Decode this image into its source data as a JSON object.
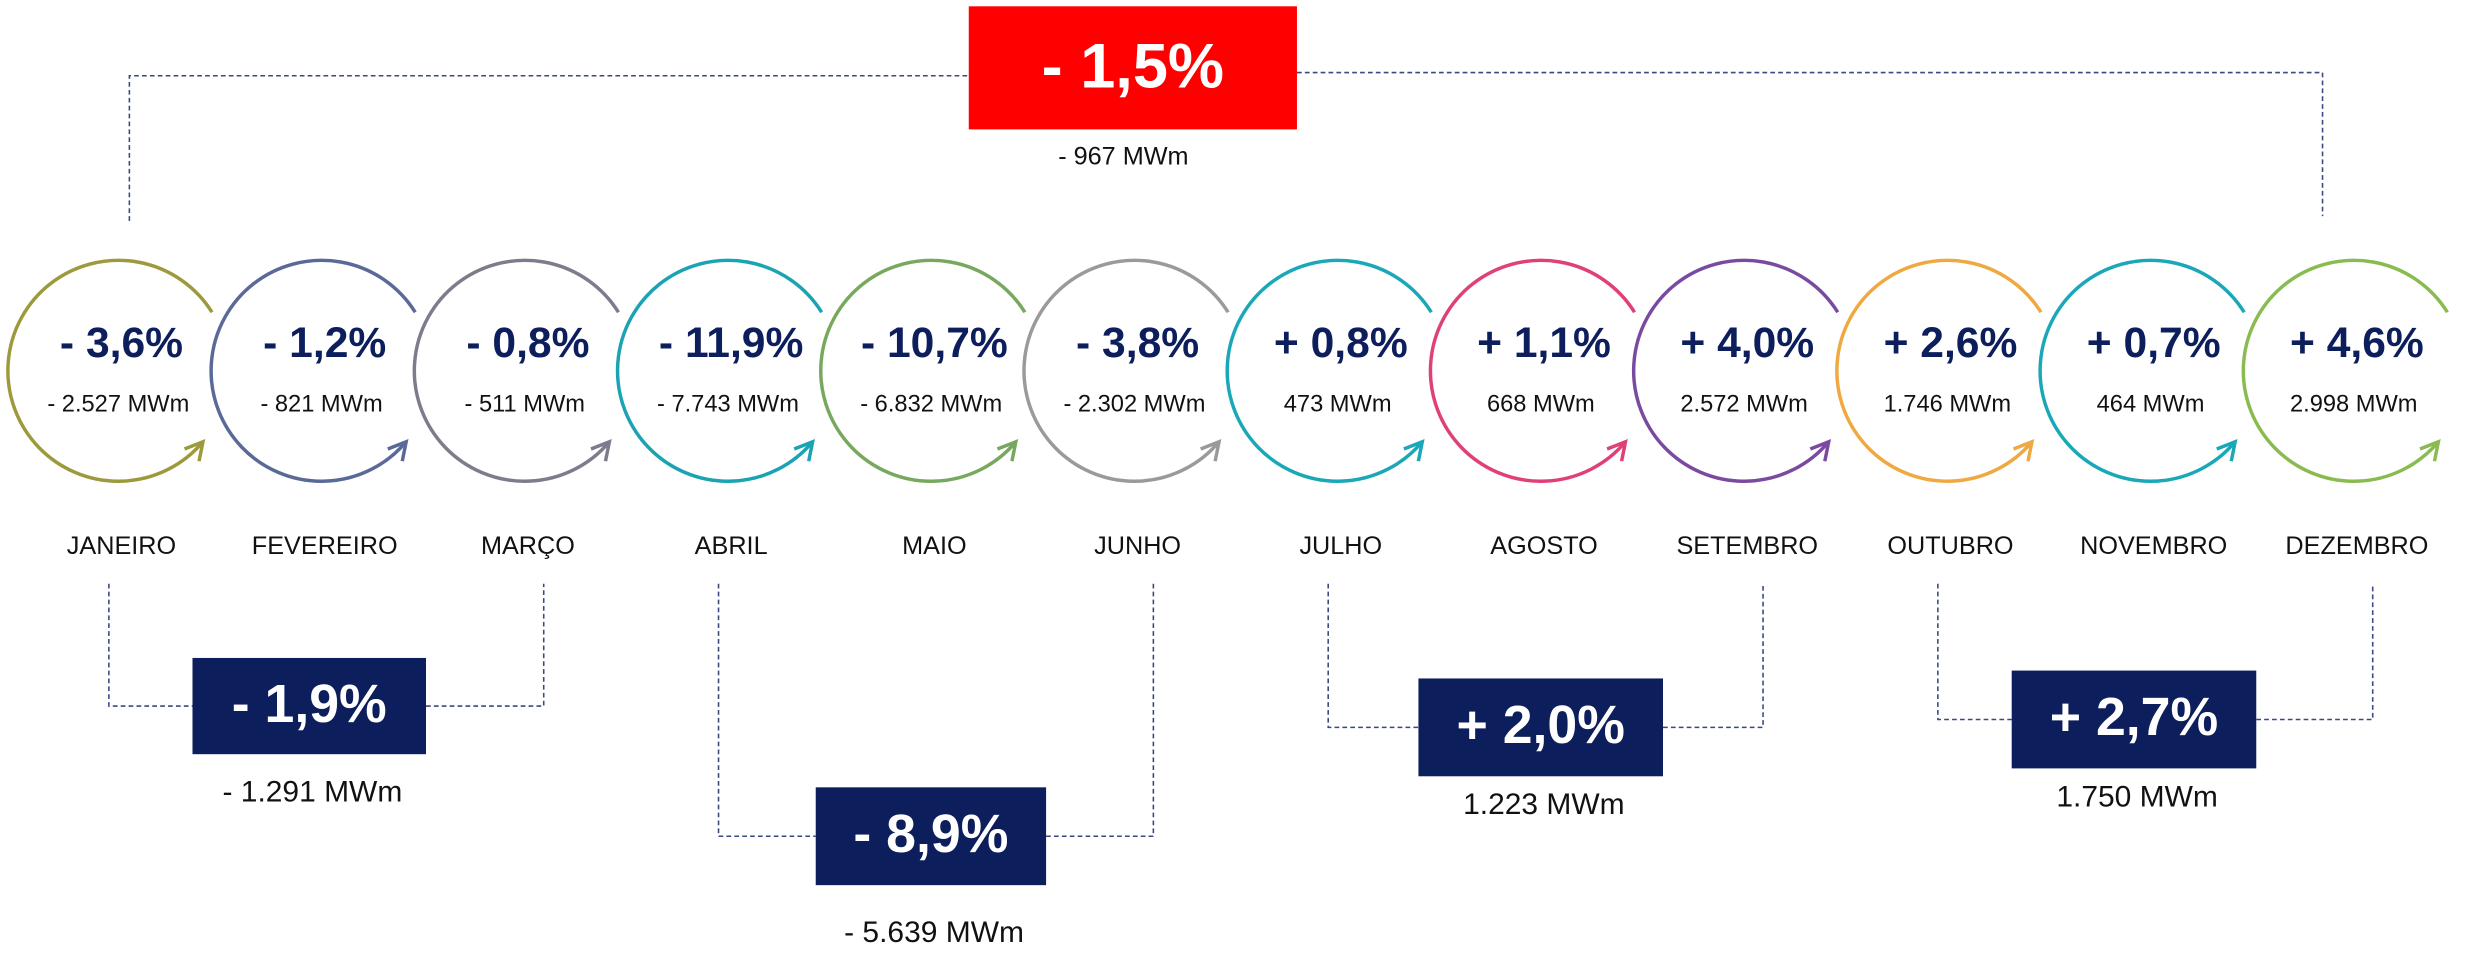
{
  "annual": {
    "value": "- 1,5%",
    "mwm": "- 967 MWm",
    "color": "#ff0000"
  },
  "months": [
    {
      "name": "JANEIRO",
      "value": "- 3,6%",
      "mwm": "- 2.527 MWm",
      "color": "#9c9a3c"
    },
    {
      "name": "FEVEREIRO",
      "value": "- 1,2%",
      "mwm": "- 821 MWm",
      "color": "#5a6a98"
    },
    {
      "name": "MARÇO",
      "value": "- 0,8%",
      "mwm": "- 511 MWm",
      "color": "#7c7c8c"
    },
    {
      "name": "ABRIL",
      "value": "- 11,9%",
      "mwm": "- 7.743 MWm",
      "color": "#1aa3b3"
    },
    {
      "name": "MAIO",
      "value": "- 10,7%",
      "mwm": "- 6.832 MWm",
      "color": "#78a85e"
    },
    {
      "name": "JUNHO",
      "value": "- 3,8%",
      "mwm": "- 2.302 MWm",
      "color": "#9a9a9a"
    },
    {
      "name": "JULHO",
      "value": "+ 0,8%",
      "mwm": "473 MWm",
      "color": "#1aa8b8"
    },
    {
      "name": "AGOSTO",
      "value": "+ 1,1%",
      "mwm": "668 MWm",
      "color": "#e0407a"
    },
    {
      "name": "SETEMBRO",
      "value": "+ 4,0%",
      "mwm": "2.572 MWm",
      "color": "#7a4aa0"
    },
    {
      "name": "OUTUBRO",
      "value": "+ 2,6%",
      "mwm": "1.746 MWm",
      "color": "#f0a840"
    },
    {
      "name": "NOVEMBRO",
      "value": "+ 0,7%",
      "mwm": "464 MWm",
      "color": "#1aa8b8"
    },
    {
      "name": "DEZEMBRO",
      "value": "+ 4,6%",
      "mwm": "2.998 MWm",
      "color": "#8abb50"
    }
  ],
  "quarters": [
    {
      "value": "- 1,9%",
      "mwm": "- 1.291 MWm",
      "color": "#0d1e5c"
    },
    {
      "value": "- 8,9%",
      "mwm": "- 5.639 MWm",
      "color": "#0d1e5c"
    },
    {
      "value": "+ 2,0%",
      "mwm": "1.223 MWm",
      "color": "#0d1e5c"
    },
    {
      "value": "+ 2,7%",
      "mwm": "1.750 MWm",
      "color": "#0d1e5c"
    }
  ]
}
